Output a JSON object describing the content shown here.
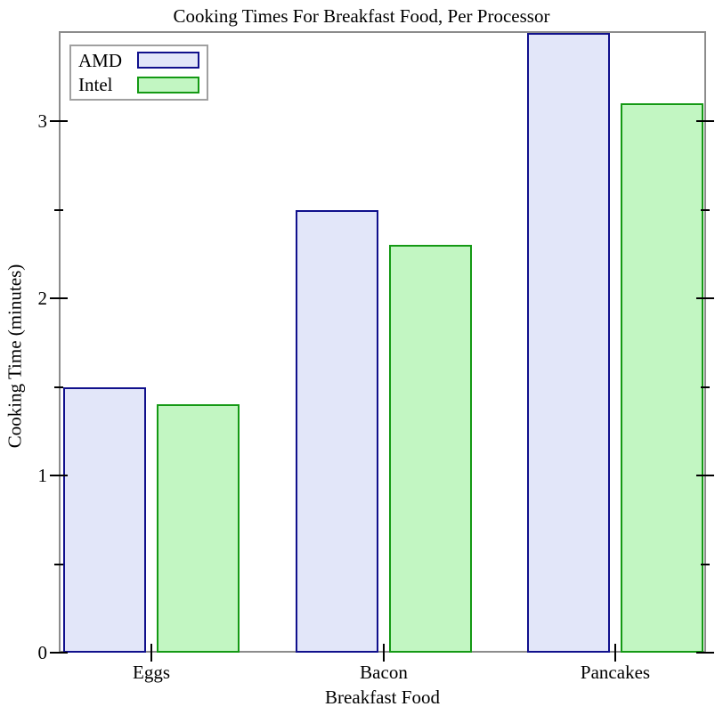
{
  "chart_data": {
    "type": "bar",
    "title": "Cooking Times For Breakfast Food, Per Processor",
    "xlabel": "Breakfast Food",
    "ylabel": "Cooking Time (minutes)",
    "categories": [
      "Eggs",
      "Bacon",
      "Pancakes"
    ],
    "series": [
      {
        "name": "AMD",
        "values": [
          1.5,
          2.5,
          3.5
        ],
        "fill_color": "#e2e6f9",
        "border_color": "#10108c"
      },
      {
        "name": "Intel",
        "values": [
          1.4,
          2.3,
          3.1
        ],
        "fill_color": "#c2f6c2",
        "border_color": "#149914"
      }
    ],
    "ylim": [
      0,
      3.5
    ],
    "y_major_ticks": [
      0,
      1,
      2,
      3
    ],
    "y_minor_ticks": [
      0.5,
      1.5,
      2.5
    ],
    "grid": false,
    "legend_position": "top-left",
    "frame_color": "#8c8c8c",
    "tick_color": "#000000",
    "background_color": "#ffffff"
  }
}
